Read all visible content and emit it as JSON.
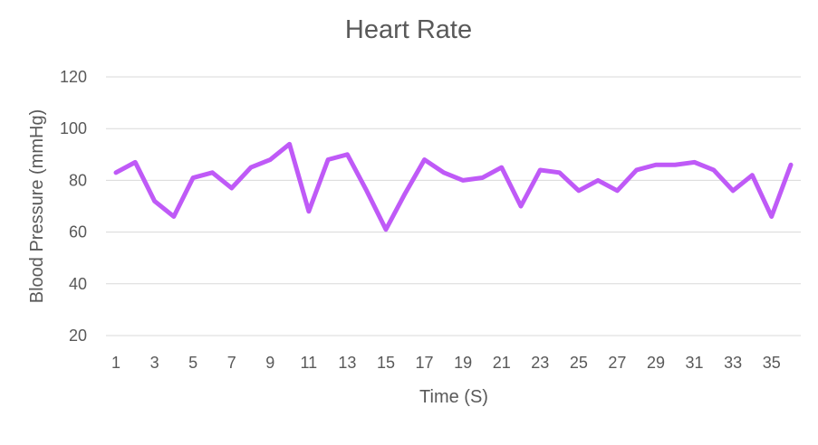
{
  "chart_data": {
    "type": "line",
    "title": "Heart Rate",
    "xlabel": "Time (S)",
    "ylabel": "Blood Pressure (mmHg)",
    "x": [
      1,
      2,
      3,
      4,
      5,
      6,
      7,
      8,
      9,
      10,
      11,
      12,
      13,
      14,
      15,
      16,
      17,
      18,
      19,
      20,
      21,
      22,
      23,
      24,
      25,
      26,
      27,
      28,
      29,
      30,
      31,
      32,
      33,
      34,
      35,
      36
    ],
    "x_tick_labels": [
      "1",
      "3",
      "5",
      "7",
      "9",
      "11",
      "13",
      "15",
      "17",
      "19",
      "21",
      "23",
      "25",
      "27",
      "29",
      "31",
      "33",
      "35"
    ],
    "y_tick_labels": [
      "20",
      "40",
      "60",
      "80",
      "100",
      "120"
    ],
    "ylim": [
      20,
      120
    ],
    "grid": "horizontal",
    "legend": "none",
    "series": [
      {
        "color": "#bf5af7",
        "values": [
          83,
          87,
          72,
          66,
          81,
          83,
          77,
          85,
          88,
          94,
          68,
          88,
          90,
          76,
          61,
          75,
          88,
          83,
          80,
          81,
          85,
          70,
          84,
          83,
          76,
          80,
          76,
          84,
          86,
          86,
          87,
          84,
          76,
          82,
          66,
          86
        ]
      }
    ]
  }
}
